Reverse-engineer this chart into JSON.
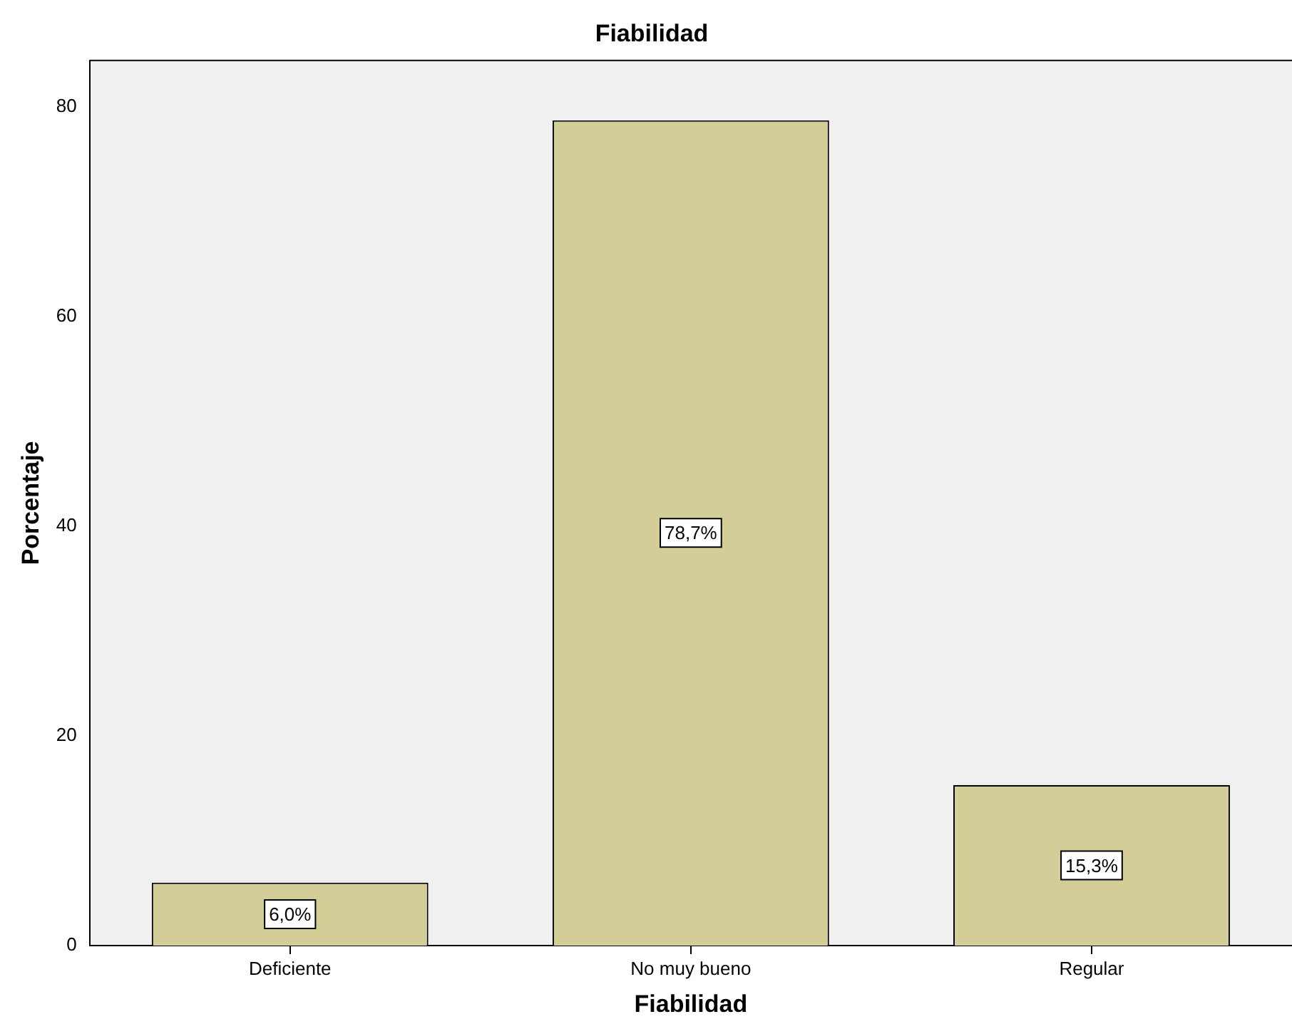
{
  "chart_data": {
    "type": "bar",
    "title": "Fiabilidad",
    "xlabel": "Fiabilidad",
    "ylabel": "Porcentaje",
    "categories": [
      "Deficiente",
      "No muy bueno",
      "Regular"
    ],
    "values": [
      6.0,
      78.7,
      15.3
    ],
    "color": "#d3ce98",
    "value_labels": [
      "6,0%",
      "78,7%",
      "15,3%"
    ],
    "ylim": [
      0,
      84.4
    ],
    "yticks": [
      0,
      20,
      40,
      60,
      80
    ],
    "grid": false,
    "legend": false
  }
}
